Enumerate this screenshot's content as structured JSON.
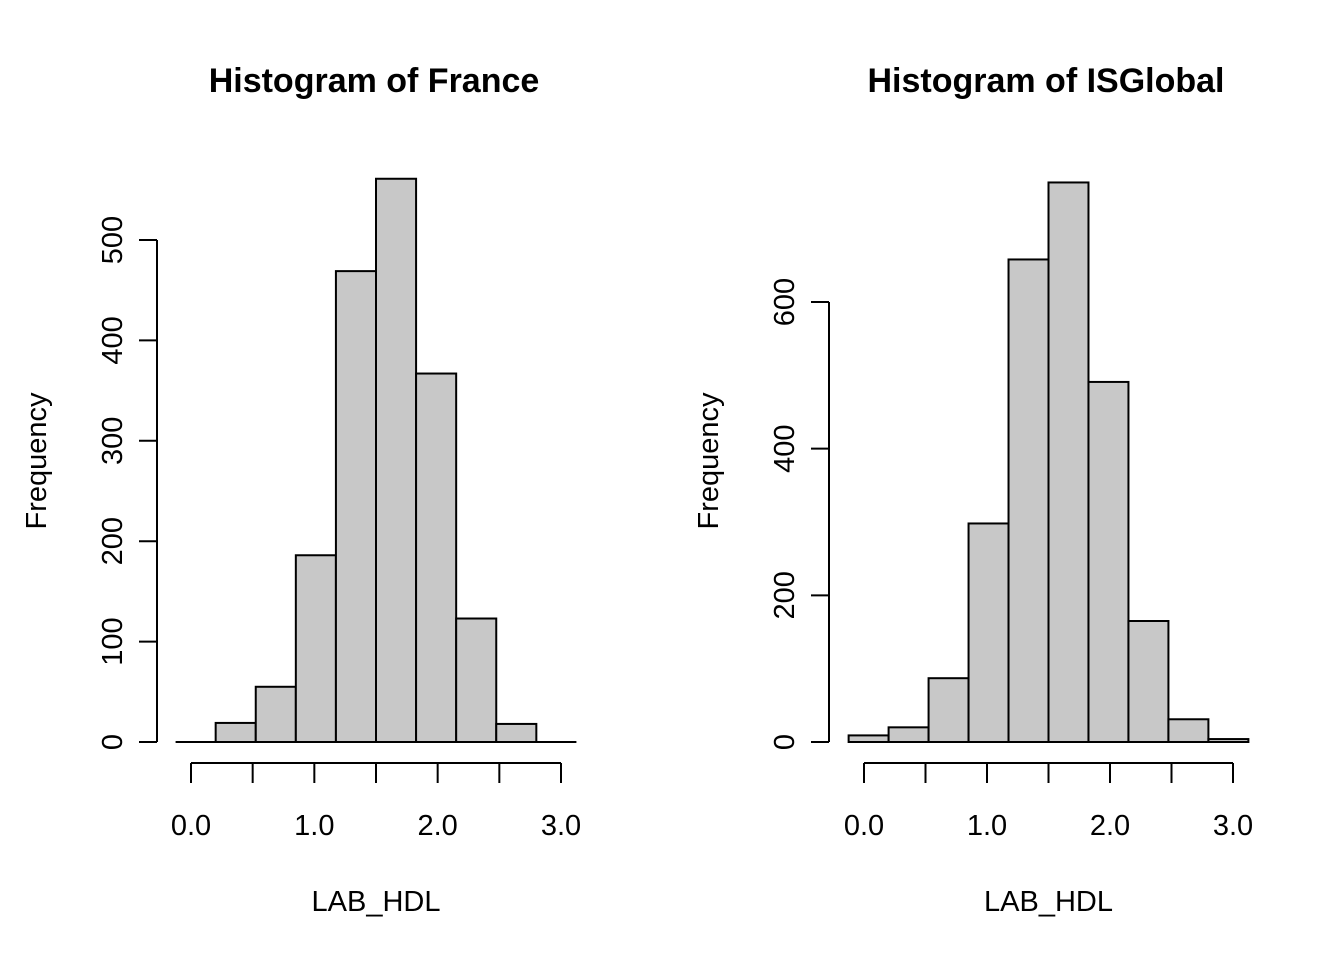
{
  "chart_data": [
    {
      "type": "bar",
      "title": "Histogram of France",
      "xlabel": "LAB_HDL",
      "ylabel": "Frequency",
      "bin_edges": [
        -0.125,
        0.2,
        0.525,
        0.85,
        1.175,
        1.5,
        1.825,
        2.15,
        2.475,
        2.8,
        3.125
      ],
      "values": [
        0,
        19,
        55,
        186,
        469,
        561,
        367,
        123,
        18,
        0
      ],
      "xticks": [
        0.0,
        0.5,
        1.0,
        1.5,
        2.0,
        2.5,
        3.0
      ],
      "xtick_labels": [
        "0.0",
        "",
        "1.0",
        "",
        "2.0",
        "",
        "3.0"
      ],
      "yticks": [
        0,
        100,
        200,
        300,
        400,
        500
      ],
      "ytick_labels": [
        "0",
        "100",
        "200",
        "300",
        "400",
        "500"
      ],
      "bar_color": "#c8c8c8"
    },
    {
      "type": "bar",
      "title": "Histogram of ISGlobal",
      "xlabel": "LAB_HDL",
      "ylabel": "Frequency",
      "bin_edges": [
        -0.125,
        0.2,
        0.525,
        0.85,
        1.175,
        1.5,
        1.825,
        2.15,
        2.475,
        2.8,
        3.125
      ],
      "values": [
        9,
        20,
        87,
        298,
        658,
        763,
        491,
        165,
        31,
        4
      ],
      "xticks": [
        0.0,
        0.5,
        1.0,
        1.5,
        2.0,
        2.5,
        3.0
      ],
      "xtick_labels": [
        "0.0",
        "",
        "1.0",
        "",
        "2.0",
        "",
        "3.0"
      ],
      "yticks": [
        0,
        200,
        400,
        600
      ],
      "ytick_labels": [
        "0",
        "200",
        "400",
        "600"
      ],
      "bar_color": "#c8c8c8"
    }
  ]
}
